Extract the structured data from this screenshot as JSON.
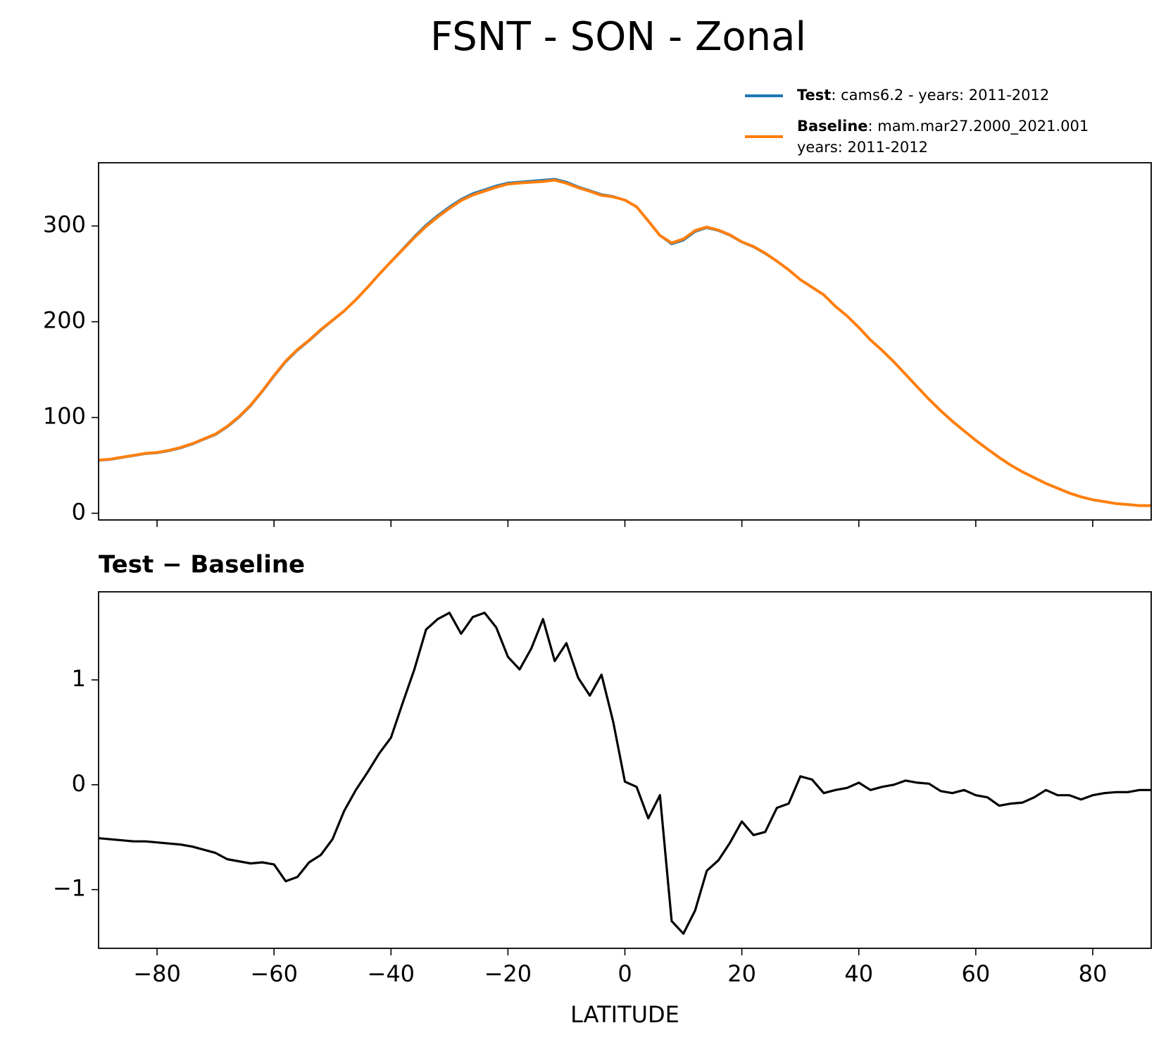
{
  "title": "FSNT - SON - Zonal",
  "chart_data": [
    {
      "type": "line",
      "x": [
        -90,
        -88,
        -86,
        -84,
        -82,
        -80,
        -78,
        -76,
        -74,
        -72,
        -70,
        -68,
        -66,
        -64,
        -62,
        -60,
        -58,
        -56,
        -54,
        -52,
        -50,
        -48,
        -46,
        -44,
        -42,
        -40,
        -38,
        -36,
        -34,
        -32,
        -30,
        -28,
        -26,
        -24,
        -22,
        -20,
        -18,
        -16,
        -14,
        -12,
        -10,
        -8,
        -6,
        -4,
        -2,
        0,
        2,
        4,
        6,
        8,
        10,
        12,
        14,
        16,
        18,
        20,
        22,
        24,
        26,
        28,
        30,
        32,
        34,
        36,
        38,
        40,
        42,
        44,
        46,
        48,
        50,
        52,
        54,
        56,
        58,
        60,
        62,
        64,
        66,
        68,
        70,
        72,
        74,
        76,
        78,
        80,
        82,
        84,
        86,
        88,
        90
      ],
      "series": [
        {
          "name": "Test",
          "label": [
            ": cams6.2 - years: 2011-2012"
          ],
          "color": "#1f77b4",
          "values": [
            55,
            56,
            58,
            60,
            62,
            63,
            65,
            68,
            72,
            77,
            82,
            90,
            100,
            112,
            127,
            143,
            158,
            170,
            180,
            191,
            201,
            211,
            223,
            236,
            250,
            263,
            276,
            289,
            301,
            311,
            320,
            328,
            334,
            338,
            342,
            345,
            346,
            347,
            348,
            349,
            346,
            341,
            337,
            333,
            331,
            327,
            320,
            305,
            290,
            281,
            285,
            294,
            298,
            295,
            290,
            283,
            278,
            271,
            263,
            254,
            244,
            236,
            228,
            216,
            206,
            194,
            181,
            170,
            158,
            145,
            132,
            119,
            107,
            96,
            86,
            76,
            67,
            58,
            50,
            43,
            37,
            31,
            26,
            21,
            17,
            14,
            12,
            10,
            9,
            8,
            8
          ]
        },
        {
          "name": "Baseline",
          "label": [
            ": mam.mar27.2000_2021.001",
            "years: 2011-2012"
          ],
          "color": "#ff7f0e",
          "values": [
            55.5,
            56.5,
            58.5,
            60.5,
            62.5,
            63.5,
            65.6,
            68.6,
            72.6,
            77.6,
            82.7,
            90.7,
            100.7,
            112.8,
            127.7,
            143.8,
            158.9,
            170.9,
            180.7,
            191.7,
            201.5,
            211.3,
            223,
            235.9,
            249.7,
            262.6,
            275.2,
            287.9,
            299.5,
            309.4,
            318.4,
            326.6,
            332.4,
            336.4,
            340.5,
            343.8,
            344.9,
            345.7,
            346.4,
            347.8,
            344.6,
            340,
            336.2,
            332,
            330.4,
            327,
            320,
            305.3,
            290.1,
            282.3,
            286.4,
            295.2,
            298.8,
            295.7,
            290.6,
            283.4,
            278.5,
            271.5,
            263.2,
            254.2,
            243.9,
            236,
            228.1,
            216.1,
            206,
            194,
            181,
            170,
            158,
            145,
            132,
            119,
            107.1,
            96.1,
            86.1,
            76.1,
            67.1,
            58.2,
            50.2,
            43.2,
            37.1,
            31.1,
            26.1,
            21.1,
            17.1,
            14.1,
            12.1,
            10.1,
            9.1,
            8,
            8
          ]
        }
      ],
      "ylim": [
        -7,
        366
      ],
      "yticks": [
        0,
        100,
        200,
        300
      ],
      "xlim": [
        -90,
        90
      ],
      "xticks": [
        -80,
        -60,
        -40,
        -20,
        0,
        20,
        40,
        60,
        80
      ],
      "legend": "upper right"
    },
    {
      "type": "line",
      "title": "Test − Baseline",
      "xlabel": "LATITUDE",
      "x": [
        -90,
        -88,
        -86,
        -84,
        -82,
        -80,
        -78,
        -76,
        -74,
        -72,
        -70,
        -68,
        -66,
        -64,
        -62,
        -60,
        -58,
        -56,
        -54,
        -52,
        -50,
        -48,
        -46,
        -44,
        -42,
        -40,
        -38,
        -36,
        -34,
        -32,
        -30,
        -28,
        -26,
        -24,
        -22,
        -20,
        -18,
        -16,
        -14,
        -12,
        -10,
        -8,
        -6,
        -4,
        -2,
        0,
        2,
        4,
        6,
        8,
        10,
        12,
        14,
        16,
        18,
        20,
        22,
        24,
        26,
        28,
        30,
        32,
        34,
        36,
        38,
        40,
        42,
        44,
        46,
        48,
        50,
        52,
        54,
        56,
        58,
        60,
        62,
        64,
        66,
        68,
        70,
        72,
        74,
        76,
        78,
        80,
        82,
        84,
        86,
        88,
        90
      ],
      "series": [
        {
          "color": "#000000",
          "values": [
            -0.51,
            -0.52,
            -0.53,
            -0.54,
            -0.54,
            -0.55,
            -0.56,
            -0.57,
            -0.59,
            -0.62,
            -0.65,
            -0.71,
            -0.73,
            -0.75,
            -0.74,
            -0.76,
            -0.92,
            -0.88,
            -0.74,
            -0.67,
            -0.52,
            -0.25,
            -0.05,
            0.12,
            0.3,
            0.45,
            0.78,
            1.1,
            1.48,
            1.58,
            1.64,
            1.44,
            1.6,
            1.64,
            1.5,
            1.22,
            1.1,
            1.3,
            1.58,
            1.18,
            1.35,
            1.02,
            0.85,
            1.05,
            0.6,
            0.03,
            -0.02,
            -0.32,
            -0.1,
            -1.3,
            -1.42,
            -1.2,
            -0.82,
            -0.72,
            -0.55,
            -0.35,
            -0.48,
            -0.45,
            -0.22,
            -0.18,
            0.08,
            0.05,
            -0.08,
            -0.05,
            -0.03,
            0.02,
            -0.05,
            -0.02,
            0,
            0.04,
            0.02,
            0.01,
            -0.06,
            -0.08,
            -0.05,
            -0.1,
            -0.12,
            -0.2,
            -0.18,
            -0.17,
            -0.12,
            -0.05,
            -0.1,
            -0.1,
            -0.14,
            -0.1,
            -0.08,
            -0.07,
            -0.07,
            -0.05,
            -0.05
          ]
        }
      ],
      "ylim": [
        -1.56,
        1.84
      ],
      "yticks": [
        {
          "value": -1,
          "label": "−1"
        },
        0,
        1
      ],
      "xlim": [
        -90,
        90
      ],
      "xticks": [
        {
          "value": -80,
          "label": "−80"
        },
        {
          "value": -60,
          "label": "−60"
        },
        {
          "value": -40,
          "label": "−40"
        },
        {
          "value": -20,
          "label": "−20"
        },
        0,
        20,
        40,
        60,
        80
      ]
    }
  ]
}
